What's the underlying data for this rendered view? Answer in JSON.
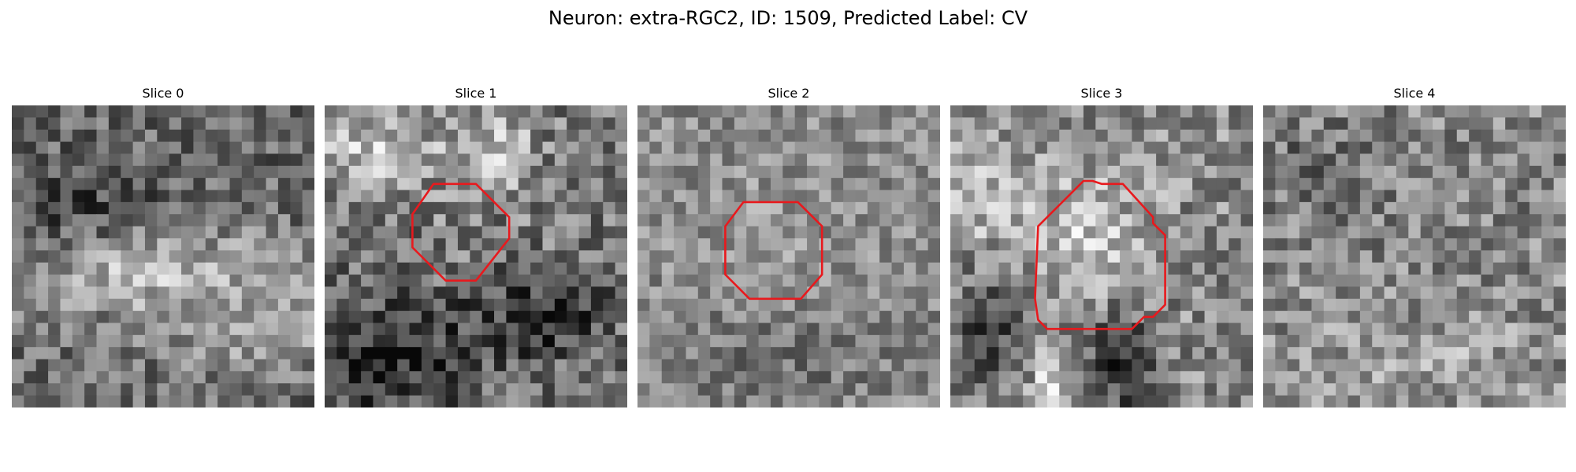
{
  "figure": {
    "title": "Neuron: extra-RGC2, ID: 1509, Predicted Label: CV"
  },
  "panels": [
    {
      "title": "Slice 0",
      "seed": 11,
      "contrast": 1.0,
      "base": 105,
      "features": [
        [
          0.45,
          0.55,
          0.5,
          0.14,
          80
        ],
        [
          0.8,
          0.75,
          0.35,
          0.12,
          60
        ],
        [
          0.2,
          0.35,
          0.3,
          0.15,
          -40
        ]
      ],
      "roi": null
    },
    {
      "title": "Slice 1",
      "seed": 23,
      "contrast": 1.15,
      "base": 120,
      "features": [
        [
          0.15,
          0.15,
          0.2,
          0.15,
          70
        ],
        [
          0.55,
          0.15,
          0.15,
          0.15,
          70
        ],
        [
          0.2,
          0.85,
          0.25,
          0.2,
          -90
        ],
        [
          0.7,
          0.7,
          0.25,
          0.15,
          -70
        ],
        [
          0.45,
          0.5,
          0.15,
          0.15,
          10
        ]
      ],
      "roi": "octagon-small"
    },
    {
      "title": "Slice 2",
      "seed": 37,
      "contrast": 0.85,
      "base": 140,
      "features": [
        [
          0.45,
          0.45,
          0.2,
          0.2,
          15
        ],
        [
          0.5,
          0.85,
          0.4,
          0.2,
          -25
        ]
      ],
      "roi": "octagon-medium"
    },
    {
      "title": "Slice 3",
      "seed": 53,
      "contrast": 1.1,
      "base": 140,
      "features": [
        [
          0.45,
          0.45,
          0.2,
          0.25,
          55
        ],
        [
          0.1,
          0.3,
          0.15,
          0.2,
          40
        ],
        [
          0.15,
          0.75,
          0.2,
          0.2,
          -70
        ],
        [
          0.55,
          0.85,
          0.15,
          0.2,
          -80
        ],
        [
          0.35,
          0.9,
          0.1,
          0.15,
          90
        ]
      ],
      "roi": "octagon-large"
    },
    {
      "title": "Slice 4",
      "seed": 71,
      "contrast": 1.05,
      "base": 135,
      "features": [
        [
          0.2,
          0.2,
          0.2,
          0.15,
          -30
        ],
        [
          0.5,
          0.85,
          0.4,
          0.15,
          30
        ]
      ],
      "roi": null
    }
  ],
  "colors": {
    "roi": "#e8191d"
  }
}
